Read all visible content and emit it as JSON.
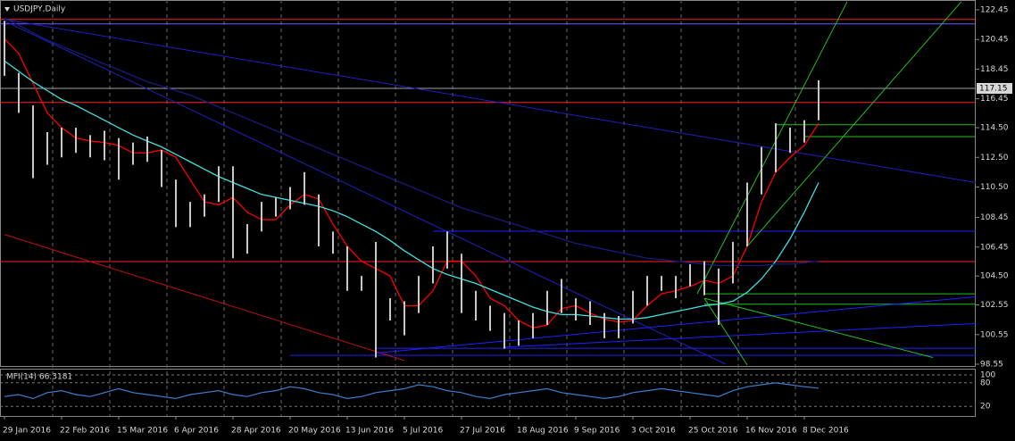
{
  "chart_data": {
    "type": "ohlc",
    "title": "USDJPY,Daily",
    "categories": [
      "29 Jan 2016",
      null,
      null,
      null,
      "22 Feb 2016",
      null,
      null,
      null,
      "15 Mar 2016",
      null,
      null,
      null,
      "6 Apr 2016",
      null,
      null,
      null,
      "28 Apr 2016",
      null,
      null,
      null,
      "20 May 2016",
      null,
      null,
      null,
      "13 Jun 2016",
      null,
      null,
      null,
      "5 Jul 2016",
      null,
      null,
      null,
      "27 Jul 2016",
      null,
      null,
      null,
      "18 Aug 2016",
      null,
      null,
      null,
      "9 Sep 2016",
      null,
      null,
      null,
      "3 Oct 2016",
      null,
      null,
      null,
      "25 Oct 2016",
      null,
      null,
      null,
      "16 Nov 2016",
      null,
      null,
      null,
      "8 Dec 2016",
      null
    ],
    "high": [
      121.7,
      118.2,
      116.0,
      114.2,
      114.5,
      114.5,
      114.0,
      114.3,
      113.8,
      113.5,
      113.9,
      113.0,
      111.0,
      109.5,
      110.0,
      111.9,
      111.9,
      108.0,
      109.5,
      109.8,
      110.5,
      111.5,
      110.0,
      107.5,
      106.5,
      104.5,
      106.8,
      103.0,
      102.8,
      104.5,
      106.5,
      107.5,
      106.0,
      103.5,
      102.5,
      102.0,
      101.5,
      102.0,
      103.5,
      104.3,
      103.0,
      102.8,
      102.0,
      101.8,
      103.5,
      104.5,
      104.5,
      104.5,
      105.3,
      105.5,
      105.0,
      106.8,
      110.8,
      113.2,
      114.8,
      114.5,
      115.0,
      117.7
    ],
    "low": [
      118.0,
      115.5,
      111.1,
      112.0,
      112.5,
      112.8,
      112.5,
      112.3,
      111.0,
      112.0,
      112.2,
      110.5,
      107.8,
      107.8,
      108.5,
      109.5,
      105.7,
      106.0,
      107.5,
      108.5,
      109.0,
      109.3,
      106.5,
      106.0,
      103.5,
      103.5,
      99.0,
      101.5,
      100.5,
      102.0,
      104.0,
      105.0,
      102.0,
      101.5,
      100.8,
      99.6,
      99.8,
      100.3,
      101.2,
      102.0,
      101.5,
      101.2,
      100.3,
      100.3,
      101.3,
      102.5,
      103.5,
      103.0,
      103.8,
      103.2,
      101.2,
      104.0,
      106.5,
      110.0,
      111.5,
      112.8,
      113.5,
      115.0
    ],
    "series": [
      {
        "color": "#ff0000",
        "values": [
          120.5,
          119.5,
          117.5,
          115.5,
          114.5,
          113.8,
          113.6,
          113.5,
          113.3,
          112.8,
          112.8,
          113.0,
          112.5,
          111.0,
          109.5,
          109.3,
          109.8,
          108.8,
          108.3,
          108.3,
          109.3,
          110.0,
          109.7,
          108.0,
          106.5,
          105.5,
          105.0,
          104.5,
          102.5,
          102.5,
          103.5,
          105.5,
          105.5,
          104.5,
          103.0,
          102.5,
          101.5,
          101.0,
          101.2,
          102.3,
          102.5,
          102.0,
          101.6,
          101.4,
          101.5,
          102.5,
          103.3,
          103.5,
          103.8,
          104.2,
          104.0,
          104.5,
          106.5,
          109.5,
          111.5,
          112.5,
          113.3,
          114.8
        ]
      },
      {
        "color": "#40e0e0",
        "values": [
          119.0,
          118.3,
          117.6,
          117.0,
          116.4,
          116.0,
          115.5,
          115.0,
          114.5,
          114.0,
          113.6,
          113.2,
          112.7,
          112.2,
          111.7,
          111.2,
          110.8,
          110.4,
          110.0,
          109.8,
          109.6,
          109.4,
          109.2,
          108.9,
          108.5,
          108.0,
          107.5,
          106.9,
          106.2,
          105.6,
          105.0,
          104.6,
          104.3,
          104.0,
          103.6,
          103.2,
          102.8,
          102.4,
          102.1,
          101.9,
          101.9,
          101.8,
          101.7,
          101.6,
          101.6,
          101.7,
          101.9,
          102.1,
          102.3,
          102.5,
          102.6,
          102.8,
          103.4,
          104.3,
          105.5,
          107.0,
          108.8,
          110.8
        ]
      },
      {
        "color": "#1a1a80",
        "values": [
          121.9,
          121.4,
          120.9,
          120.4,
          120.0,
          119.6,
          119.2,
          118.8,
          118.4,
          118.0,
          117.6,
          117.3,
          117.0,
          116.7,
          116.3,
          115.9,
          115.5,
          115.1,
          114.7,
          114.3,
          113.9,
          113.5,
          113.1,
          112.7,
          112.3,
          111.9,
          111.5,
          111.1,
          110.7,
          110.3,
          109.9,
          109.5,
          109.1,
          108.8,
          108.5,
          108.2,
          107.9,
          107.6,
          107.3,
          107.0,
          106.7,
          106.5,
          106.3,
          106.1,
          105.9,
          105.7,
          105.6,
          105.5,
          105.4,
          105.3,
          105.2,
          105.2,
          105.2,
          105.2,
          105.3,
          105.3,
          105.4,
          105.5
        ]
      }
    ],
    "levels": [
      {
        "price": 121.8,
        "color": "#ff2020"
      },
      {
        "price": 121.5,
        "color": "#6060ff"
      },
      {
        "price": 117.15,
        "color": "#a0a0a0"
      },
      {
        "price": 116.2,
        "color": "#ff2020"
      },
      {
        "price": 107.52,
        "color": "#2020ff",
        "start": 30
      },
      {
        "price": 105.47,
        "color": "#ff2020"
      },
      {
        "price": 114.7,
        "color": "#20c020",
        "start": 54
      },
      {
        "price": 113.9,
        "color": "#20c020",
        "start": 56
      },
      {
        "price": 103.3,
        "color": "#20c020",
        "start": 49
      },
      {
        "price": 102.6,
        "color": "#20c020",
        "start": 49
      },
      {
        "price": 99.63,
        "color": "#2020ff",
        "start": 26
      },
      {
        "price": 99.15,
        "color": "#2020ff",
        "start": 20
      }
    ],
    "trend_lines": [
      {
        "color": "#2020c0",
        "from": [
          0,
          121.8
        ],
        "to": [
          68,
          110.8
        ]
      },
      {
        "color": "#2020c0",
        "from": [
          0,
          121.7
        ],
        "to": [
          50.5,
          98.55
        ]
      },
      {
        "color": "#c01010",
        "from": [
          0,
          107.3
        ],
        "to": [
          28,
          98.8
        ]
      },
      {
        "color": "#2020ff",
        "from": [
          26,
          99.3
        ],
        "to": [
          68,
          103.1
        ]
      },
      {
        "color": "#2020ff",
        "from": [
          35,
          99.7
        ],
        "to": [
          68,
          101.3
        ]
      },
      {
        "color": "#20c020",
        "from": [
          48.5,
          103.3
        ],
        "to": [
          59,
          123.0
        ]
      },
      {
        "color": "#20c020",
        "from": [
          52,
          106.5
        ],
        "to": [
          67,
          123.0
        ]
      },
      {
        "color": "#20c020",
        "from": [
          49,
          103.0
        ],
        "to": [
          52,
          98.5
        ]
      },
      {
        "color": "#20c020",
        "from": [
          49,
          103.0
        ],
        "to": [
          65,
          99.0
        ]
      }
    ],
    "current_price": {
      "value": 117.15,
      "label": "117.15"
    },
    "ylim": [
      98.43,
      123.11
    ],
    "yticks": [
      122.45,
      120.45,
      118.45,
      116.45,
      {
        "value": 114.5,
        "label": "114.50"
      },
      {
        "value": 112.5,
        "label": "112.50"
      },
      {
        "value": 110.5,
        "label": "110.50"
      },
      108.45,
      106.45,
      {
        "value": 104.5,
        "label": "104.50"
      },
      102.55,
      100.55,
      98.55
    ],
    "mfi": {
      "title": "MFI(14) 66.3181",
      "color": "#3a7fd0",
      "values": [
        45,
        50,
        40,
        55,
        60,
        50,
        45,
        55,
        65,
        55,
        50,
        45,
        40,
        50,
        55,
        60,
        50,
        45,
        55,
        60,
        70,
        65,
        55,
        50,
        40,
        45,
        55,
        60,
        65,
        75,
        70,
        60,
        55,
        45,
        40,
        50,
        55,
        60,
        65,
        55,
        50,
        45,
        40,
        45,
        55,
        60,
        65,
        60,
        55,
        50,
        45,
        60,
        70,
        75,
        80,
        75,
        70,
        66.3181
      ],
      "ylim": [
        0,
        100
      ],
      "yticks": [
        100,
        80,
        20
      ]
    },
    "bar_color": "#c8c8c8",
    "grid": true
  }
}
